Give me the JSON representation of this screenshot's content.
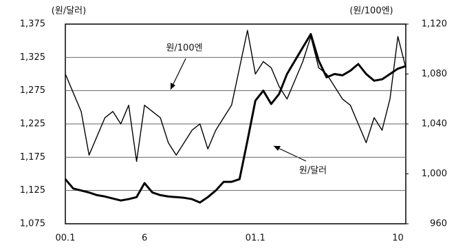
{
  "chart_data": {
    "type": "line",
    "y_unit_label": "(원/달러)",
    "y2_unit_label": "(원/100엔)",
    "annotations": [
      "원/100엔",
      "원/달러"
    ],
    "categories": [
      "00.1",
      null,
      null,
      null,
      null,
      null,
      null,
      null,
      null,
      null,
      "6",
      null,
      null,
      null,
      null,
      null,
      null,
      null,
      null,
      null,
      null,
      null,
      null,
      null,
      "01.1",
      null,
      null,
      null,
      null,
      null,
      null,
      null,
      null,
      null,
      null,
      null,
      null,
      null,
      null,
      null,
      null,
      null,
      "10",
      null
    ],
    "series": [
      {
        "name": "원/달러",
        "color": "#000000",
        "axis": "y",
        "values": [
          1142,
          1128,
          1125,
          1122,
          1118,
          1116,
          1113,
          1110,
          1112,
          1115,
          1136,
          1122,
          1118,
          1116,
          1115,
          1114,
          1112,
          1107,
          1115,
          1125,
          1138,
          1138,
          1142,
          1200,
          1260,
          1275,
          1255,
          1270,
          1300,
          1320,
          1340,
          1360,
          1320,
          1295,
          1300,
          1298,
          1305,
          1315,
          1300,
          1290,
          1292,
          1300,
          1308,
          1312
        ]
      },
      {
        "name": "원/100엔",
        "color": "#000000",
        "axis": "y2",
        "values": [
          1080,
          1065,
          1050,
          1015,
          1030,
          1045,
          1050,
          1040,
          1055,
          1010,
          1055,
          1050,
          1045,
          1025,
          1015,
          1025,
          1035,
          1040,
          1020,
          1035,
          1045,
          1055,
          1085,
          1115,
          1080,
          1090,
          1085,
          1070,
          1060,
          1075,
          1090,
          1110,
          1085,
          1080,
          1070,
          1060,
          1055,
          1040,
          1025,
          1045,
          1035,
          1060,
          1110,
          1085
        ]
      }
    ],
    "ylim": [
      1075,
      1375
    ],
    "yticks": [
      {
        "value": 1075,
        "label": "1,075"
      },
      {
        "value": 1125,
        "label": "1,125"
      },
      {
        "value": 1175,
        "label": "1,175"
      },
      {
        "value": 1225,
        "label": "1,225"
      },
      {
        "value": 1275,
        "label": "1,275"
      },
      {
        "value": 1325,
        "label": "1,325"
      },
      {
        "value": 1375,
        "label": "1,375"
      }
    ],
    "y2lim": [
      960,
      1120
    ],
    "y2ticks": [
      960,
      {
        "value": 1000,
        "label": "1,000"
      },
      {
        "value": 1040,
        "label": "1,040"
      },
      {
        "value": 1080,
        "label": "1,080"
      },
      {
        "value": 1120,
        "label": "1,120"
      }
    ],
    "grid": true
  }
}
